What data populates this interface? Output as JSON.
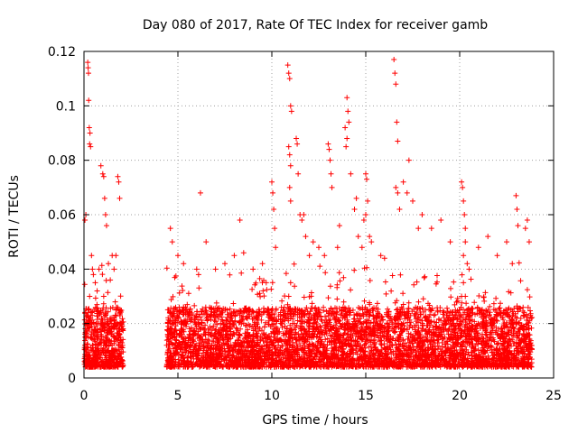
{
  "chart_data": {
    "type": "scatter",
    "title": "Day 080 of 2017, Rate Of TEC Index for receiver gamb",
    "xlabel": "GPS time / hours",
    "ylabel": "ROTI / TECUs",
    "xlim": [
      0,
      25
    ],
    "ylim": [
      0,
      0.12
    ],
    "xticks": [
      "0",
      "5",
      "10",
      "15",
      "20",
      "25"
    ],
    "yticks": [
      "0",
      "0.02",
      "0.04",
      "0.06",
      "0.08",
      "0.1",
      "0.12"
    ],
    "grid": true,
    "legend": "none",
    "marker": "+",
    "color": "#ff0000",
    "series": [
      {
        "x": [
          0.05,
          0.1,
          0.15,
          0.2,
          0.25,
          0.3,
          0.35,
          0.4,
          0.45,
          0.5,
          0.55,
          0.6,
          0.65,
          0.7,
          0.75,
          0.8,
          0.85,
          0.9,
          0.95,
          1.0,
          1.05,
          1.1,
          1.15,
          1.2,
          1.25,
          1.3,
          1.35,
          1.4,
          1.45,
          1.5,
          1.55,
          1.6,
          1.65,
          1.7,
          1.75,
          1.8,
          1.85,
          1.9,
          1.95,
          2.0,
          2.05,
          0.2,
          0.22,
          0.24,
          0.25,
          0.28,
          0.3,
          0.32,
          0.35,
          0.05,
          0.1,
          0.4,
          0.45,
          0.5,
          0.9,
          1.0,
          1.05,
          1.1,
          1.15,
          1.2,
          1.5,
          1.8,
          1.85,
          1.9,
          0.6,
          0.7,
          0.8,
          1.3,
          1.4,
          1.6,
          1.7,
          4.4,
          4.5,
          4.6,
          4.7,
          4.8,
          4.9,
          5.0,
          5.2,
          5.4,
          5.6,
          5.8,
          6.0,
          6.2,
          6.4,
          6.6,
          6.8,
          7.0,
          7.2,
          7.4,
          7.6,
          7.8,
          8.0,
          8.2,
          8.4,
          8.6,
          8.8,
          9.0,
          9.2,
          9.4,
          9.6,
          9.8,
          4.6,
          4.7,
          5.0,
          5.3,
          6.0,
          6.1,
          6.2,
          6.5,
          7.0,
          7.5,
          8.0,
          8.3,
          8.5,
          9.0,
          9.5,
          9.7,
          10.0,
          10.1,
          10.2,
          10.3,
          10.4,
          10.5,
          10.6,
          10.7,
          10.8,
          10.9,
          11.0,
          11.1,
          11.2,
          11.3,
          11.4,
          11.5,
          11.6,
          11.7,
          11.8,
          11.9,
          12.0,
          12.2,
          12.4,
          12.6,
          12.8,
          13.0,
          13.2,
          13.4,
          13.6,
          13.8,
          14.0,
          14.2,
          14.4,
          14.6,
          14.8,
          15.0,
          10.0,
          10.05,
          10.1,
          10.15,
          10.2,
          10.85,
          10.9,
          10.95,
          11.0,
          11.05,
          10.9,
          10.95,
          11.0,
          10.95,
          11.0,
          11.3,
          11.35,
          11.4,
          11.5,
          11.6,
          11.7,
          11.8,
          12.0,
          12.2,
          13.0,
          13.05,
          13.1,
          13.15,
          13.2,
          12.5,
          12.8,
          13.5,
          13.6,
          13.9,
          14.0,
          14.05,
          14.1,
          14.0,
          13.95,
          14.2,
          14.4,
          14.5,
          14.6,
          14.8,
          15.0,
          15.05,
          15.1,
          15.0,
          14.9,
          15.2,
          15.3,
          15.2,
          15.4,
          15.6,
          15.8,
          16.0,
          16.2,
          16.4,
          16.6,
          16.8,
          17.0,
          17.2,
          17.4,
          17.6,
          17.8,
          18.0,
          18.2,
          18.4,
          18.6,
          18.8,
          19.0,
          19.2,
          19.4,
          19.6,
          19.8,
          20.0,
          16.5,
          16.55,
          16.6,
          16.65,
          16.7,
          16.6,
          16.7,
          16.8,
          17.0,
          17.2,
          17.3,
          17.5,
          15.8,
          16.0,
          17.8,
          18.0,
          18.5,
          19.0,
          19.5,
          20.0,
          20.1,
          20.2,
          20.3,
          20.4,
          20.5,
          20.6,
          20.8,
          21.0,
          21.2,
          21.4,
          21.6,
          21.8,
          22.0,
          22.2,
          22.4,
          22.6,
          22.8,
          23.0,
          23.2,
          23.4,
          23.6,
          23.8,
          20.1,
          20.15,
          20.2,
          20.25,
          20.3,
          20.2,
          20.3,
          20.4,
          20.5,
          21.0,
          21.5,
          22.0,
          22.5,
          22.8,
          23.0,
          23.05,
          23.1,
          23.5,
          23.6,
          23.7
        ],
        "y": [
          0.012,
          0.015,
          0.02,
          0.018,
          0.025,
          0.03,
          0.022,
          0.016,
          0.012,
          0.01,
          0.014,
          0.018,
          0.02,
          0.015,
          0.012,
          0.01,
          0.013,
          0.016,
          0.02,
          0.025,
          0.03,
          0.02,
          0.015,
          0.012,
          0.01,
          0.014,
          0.018,
          0.022,
          0.016,
          0.012,
          0.01,
          0.015,
          0.02,
          0.025,
          0.018,
          0.014,
          0.012,
          0.016,
          0.02,
          0.018,
          0.012,
          0.116,
          0.114,
          0.112,
          0.102,
          0.092,
          0.086,
          0.09,
          0.085,
          0.058,
          0.06,
          0.045,
          0.04,
          0.038,
          0.078,
          0.075,
          0.074,
          0.066,
          0.06,
          0.056,
          0.045,
          0.074,
          0.072,
          0.066,
          0.035,
          0.032,
          0.04,
          0.042,
          0.036,
          0.04,
          0.045,
          0.012,
          0.015,
          0.018,
          0.02,
          0.016,
          0.014,
          0.012,
          0.015,
          0.013,
          0.016,
          0.014,
          0.012,
          0.015,
          0.018,
          0.014,
          0.012,
          0.016,
          0.014,
          0.012,
          0.015,
          0.018,
          0.016,
          0.014,
          0.012,
          0.015,
          0.013,
          0.016,
          0.012,
          0.014,
          0.012,
          0.015,
          0.055,
          0.05,
          0.045,
          0.042,
          0.04,
          0.038,
          0.068,
          0.05,
          0.04,
          0.042,
          0.045,
          0.058,
          0.046,
          0.04,
          0.042,
          0.035,
          0.012,
          0.015,
          0.018,
          0.016,
          0.014,
          0.02,
          0.025,
          0.022,
          0.018,
          0.03,
          0.035,
          0.025,
          0.02,
          0.016,
          0.014,
          0.012,
          0.016,
          0.018,
          0.015,
          0.014,
          0.016,
          0.018,
          0.015,
          0.014,
          0.016,
          0.018,
          0.015,
          0.016,
          0.018,
          0.014,
          0.02,
          0.016,
          0.018,
          0.015,
          0.014,
          0.018,
          0.072,
          0.068,
          0.062,
          0.055,
          0.048,
          0.115,
          0.112,
          0.11,
          0.1,
          0.098,
          0.085,
          0.082,
          0.078,
          0.07,
          0.065,
          0.088,
          0.086,
          0.075,
          0.06,
          0.058,
          0.06,
          0.052,
          0.045,
          0.05,
          0.086,
          0.084,
          0.08,
          0.075,
          0.07,
          0.048,
          0.045,
          0.048,
          0.056,
          0.092,
          0.103,
          0.098,
          0.094,
          0.088,
          0.085,
          0.075,
          0.062,
          0.066,
          0.052,
          0.048,
          0.075,
          0.073,
          0.065,
          0.06,
          0.058,
          0.052,
          0.05,
          0.014,
          0.016,
          0.02,
          0.018,
          0.015,
          0.016,
          0.018,
          0.02,
          0.016,
          0.014,
          0.018,
          0.016,
          0.014,
          0.016,
          0.018,
          0.015,
          0.016,
          0.014,
          0.018,
          0.016,
          0.015,
          0.016,
          0.014,
          0.018,
          0.02,
          0.117,
          0.112,
          0.108,
          0.094,
          0.087,
          0.07,
          0.068,
          0.062,
          0.072,
          0.068,
          0.08,
          0.065,
          0.045,
          0.044,
          0.055,
          0.06,
          0.055,
          0.058,
          0.05,
          0.025,
          0.03,
          0.035,
          0.03,
          0.025,
          0.02,
          0.018,
          0.015,
          0.014,
          0.016,
          0.018,
          0.015,
          0.014,
          0.016,
          0.018,
          0.015,
          0.016,
          0.014,
          0.02,
          0.018,
          0.016,
          0.015,
          0.012,
          0.072,
          0.07,
          0.065,
          0.06,
          0.055,
          0.045,
          0.05,
          0.042,
          0.04,
          0.048,
          0.052,
          0.045,
          0.05,
          0.042,
          0.067,
          0.062,
          0.056,
          0.055,
          0.058,
          0.05
        ]
      }
    ]
  }
}
